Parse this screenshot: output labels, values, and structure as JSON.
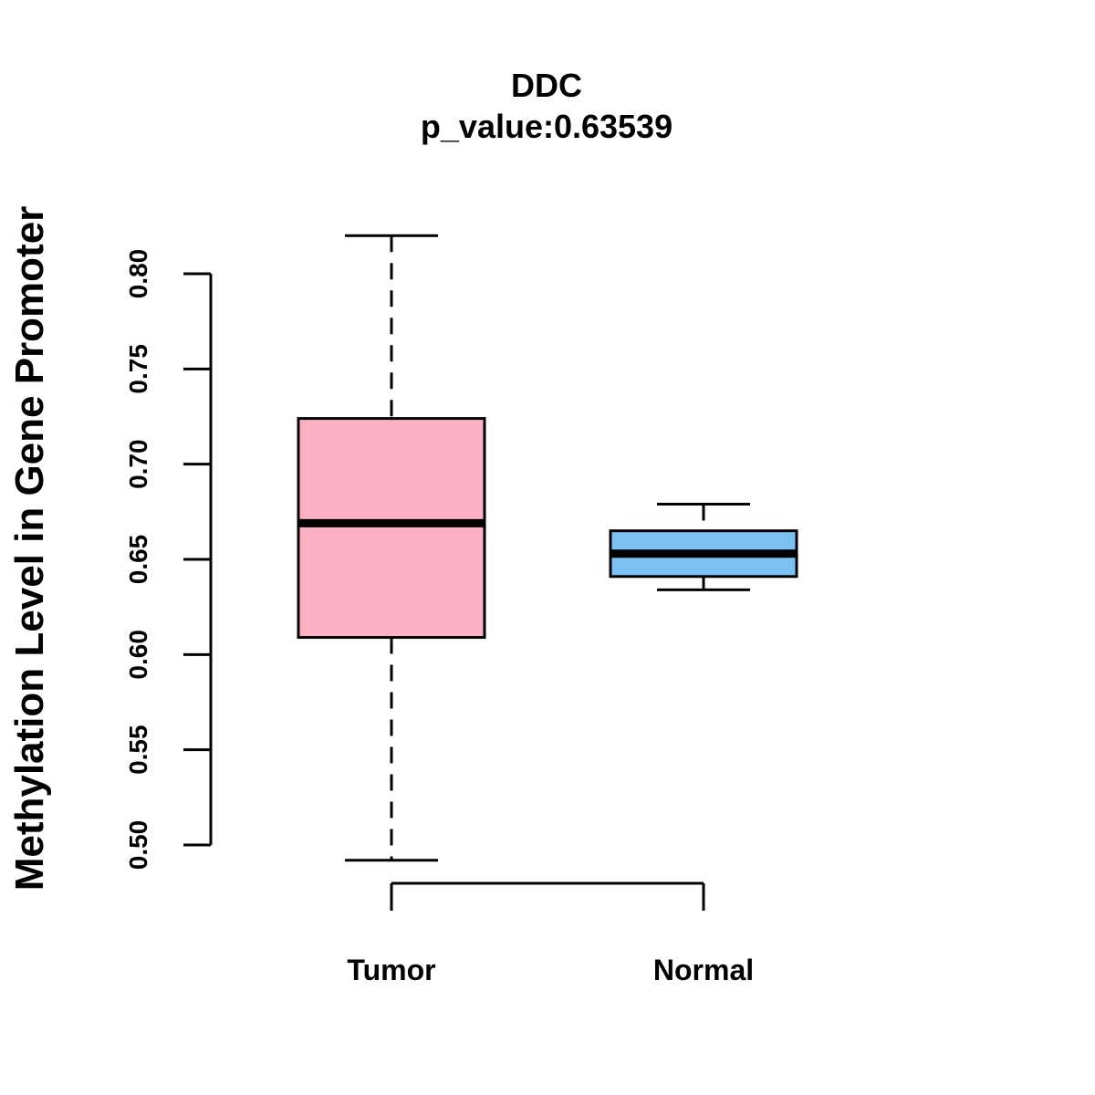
{
  "chart_data": {
    "type": "boxplot",
    "title": "DDC",
    "subtitle": "p_value:0.63539",
    "xlabel": "",
    "ylabel": "Methylation Level in Gene Promoter",
    "ylim": [
      0.5,
      0.8
    ],
    "yticks": [
      0.5,
      0.55,
      0.6,
      0.65,
      0.7,
      0.75,
      0.8
    ],
    "ytick_labels": [
      "0.50",
      "0.55",
      "0.60",
      "0.65",
      "0.70",
      "0.75",
      "0.80"
    ],
    "categories": [
      "Tumor",
      "Normal"
    ],
    "series": [
      {
        "name": "Tumor",
        "color": "#FBB1C3",
        "whisker_low": 0.492,
        "q1": 0.609,
        "median": 0.669,
        "q3": 0.724,
        "whisker_high": 0.82
      },
      {
        "name": "Normal",
        "color": "#7BC1F4",
        "whisker_low": 0.634,
        "q1": 0.641,
        "median": 0.653,
        "q3": 0.665,
        "whisker_high": 0.679
      }
    ],
    "grid": false
  }
}
